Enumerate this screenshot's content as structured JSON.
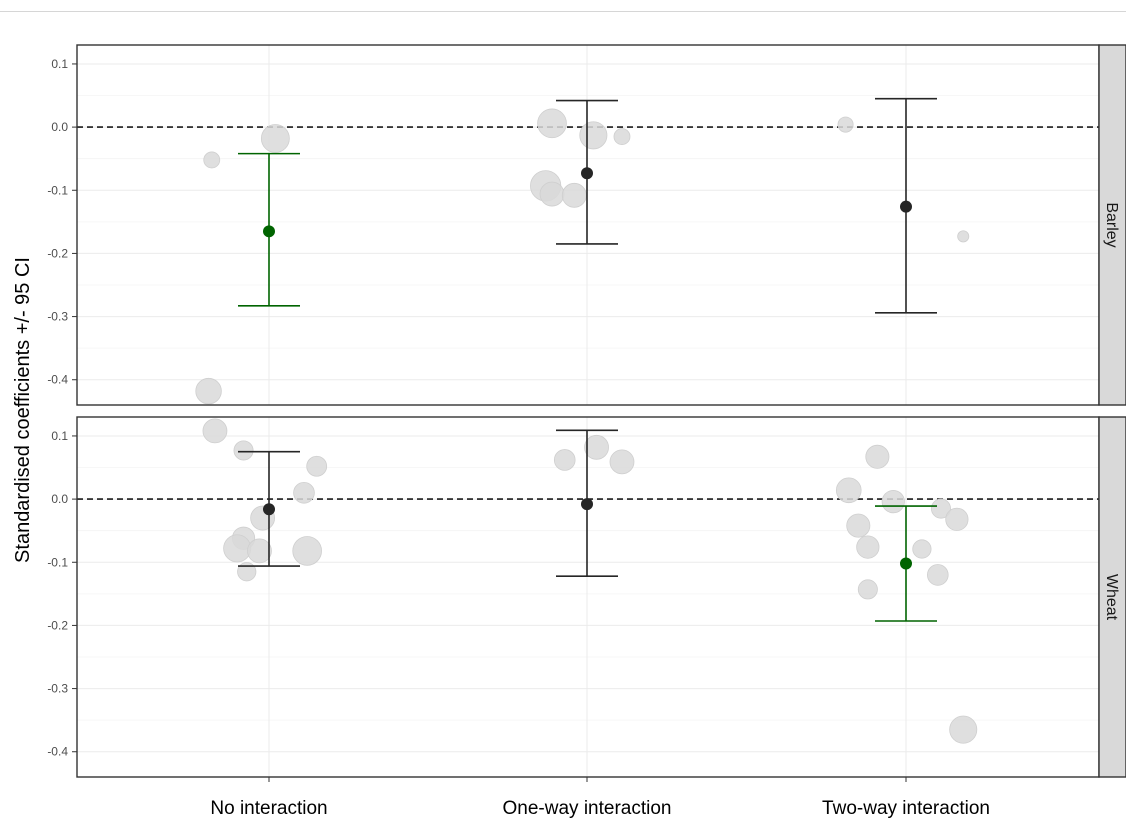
{
  "chart_data": {
    "type": "scatter",
    "title": "",
    "xlabel": "",
    "ylabel": "Standardised coefficients +/- 95 CI",
    "categories": [
      "No interaction",
      "One-way interaction",
      "Two-way interaction"
    ],
    "ylim": [
      -0.44,
      0.13
    ],
    "yticks": [
      -0.4,
      -0.3,
      -0.2,
      -0.1,
      0.0,
      0.1
    ],
    "ytick_labels": [
      "-0.4",
      "-0.3",
      "-0.2",
      "-0.1",
      "0.0",
      "0.1"
    ],
    "reference_line": 0.0,
    "grid": true,
    "colors": {
      "significant": "#006400",
      "nonsignificant": "#262626",
      "study_points": "#d9d9d9",
      "strip_fill": "#d9d9d9"
    },
    "panels": [
      {
        "name": "Barley",
        "estimates": [
          {
            "category": "No interaction",
            "estimate": -0.165,
            "lower": -0.283,
            "upper": -0.042,
            "significant": true
          },
          {
            "category": "One-way interaction",
            "estimate": -0.073,
            "lower": -0.185,
            "upper": 0.042,
            "significant": false
          },
          {
            "category": "Two-way interaction",
            "estimate": -0.126,
            "lower": -0.294,
            "upper": 0.045,
            "significant": false
          }
        ],
        "study_points": [
          {
            "category": "No interaction",
            "offset": -0.18,
            "y": -0.052,
            "weight": 1.0
          },
          {
            "category": "No interaction",
            "offset": 0.02,
            "y": -0.018,
            "weight": 2.5
          },
          {
            "category": "No interaction",
            "offset": -0.19,
            "y": -0.418,
            "weight": 2.2
          },
          {
            "category": "One-way interaction",
            "offset": -0.11,
            "y": 0.006,
            "weight": 2.6
          },
          {
            "category": "One-way interaction",
            "offset": 0.02,
            "y": -0.013,
            "weight": 2.4
          },
          {
            "category": "One-way interaction",
            "offset": 0.11,
            "y": -0.015,
            "weight": 1.0
          },
          {
            "category": "One-way interaction",
            "offset": -0.13,
            "y": -0.093,
            "weight": 2.8
          },
          {
            "category": "One-way interaction",
            "offset": -0.11,
            "y": -0.106,
            "weight": 2.0
          },
          {
            "category": "One-way interaction",
            "offset": -0.04,
            "y": -0.108,
            "weight": 2.0
          },
          {
            "category": "Two-way interaction",
            "offset": -0.19,
            "y": 0.004,
            "weight": 0.9
          },
          {
            "category": "Two-way interaction",
            "offset": 0.18,
            "y": -0.173,
            "weight": 0.4
          }
        ]
      },
      {
        "name": "Wheat",
        "estimates": [
          {
            "category": "No interaction",
            "estimate": -0.016,
            "lower": -0.106,
            "upper": 0.075,
            "significant": false
          },
          {
            "category": "One-way interaction",
            "estimate": -0.008,
            "lower": -0.122,
            "upper": 0.109,
            "significant": false
          },
          {
            "category": "Two-way interaction",
            "estimate": -0.102,
            "lower": -0.193,
            "upper": -0.011,
            "significant": true
          }
        ],
        "study_points": [
          {
            "category": "No interaction",
            "offset": -0.17,
            "y": 0.108,
            "weight": 2.0
          },
          {
            "category": "No interaction",
            "offset": -0.08,
            "y": 0.077,
            "weight": 1.4
          },
          {
            "category": "No interaction",
            "offset": 0.15,
            "y": 0.052,
            "weight": 1.5
          },
          {
            "category": "No interaction",
            "offset": 0.11,
            "y": 0.01,
            "weight": 1.6
          },
          {
            "category": "No interaction",
            "offset": -0.02,
            "y": -0.03,
            "weight": 2.0
          },
          {
            "category": "No interaction",
            "offset": -0.08,
            "y": -0.062,
            "weight": 1.8
          },
          {
            "category": "No interaction",
            "offset": -0.1,
            "y": -0.078,
            "weight": 2.4
          },
          {
            "category": "No interaction",
            "offset": -0.03,
            "y": -0.082,
            "weight": 2.0
          },
          {
            "category": "No interaction",
            "offset": 0.12,
            "y": -0.082,
            "weight": 2.6
          },
          {
            "category": "No interaction",
            "offset": -0.07,
            "y": -0.115,
            "weight": 1.3
          },
          {
            "category": "One-way interaction",
            "offset": -0.07,
            "y": 0.062,
            "weight": 1.6
          },
          {
            "category": "One-way interaction",
            "offset": 0.03,
            "y": 0.082,
            "weight": 2.0
          },
          {
            "category": "One-way interaction",
            "offset": 0.11,
            "y": 0.059,
            "weight": 2.0
          },
          {
            "category": "Two-way interaction",
            "offset": -0.09,
            "y": 0.067,
            "weight": 1.9
          },
          {
            "category": "Two-way interaction",
            "offset": -0.18,
            "y": 0.014,
            "weight": 2.1
          },
          {
            "category": "Two-way interaction",
            "offset": -0.04,
            "y": -0.004,
            "weight": 1.8
          },
          {
            "category": "Two-way interaction",
            "offset": 0.11,
            "y": -0.015,
            "weight": 1.4
          },
          {
            "category": "Two-way interaction",
            "offset": 0.16,
            "y": -0.032,
            "weight": 1.8
          },
          {
            "category": "Two-way interaction",
            "offset": -0.15,
            "y": -0.042,
            "weight": 1.9
          },
          {
            "category": "Two-way interaction",
            "offset": -0.12,
            "y": -0.076,
            "weight": 1.8
          },
          {
            "category": "Two-way interaction",
            "offset": 0.05,
            "y": -0.079,
            "weight": 1.3
          },
          {
            "category": "Two-way interaction",
            "offset": 0.1,
            "y": -0.12,
            "weight": 1.6
          },
          {
            "category": "Two-way interaction",
            "offset": -0.12,
            "y": -0.143,
            "weight": 1.4
          },
          {
            "category": "Two-way interaction",
            "offset": 0.18,
            "y": -0.365,
            "weight": 2.4
          }
        ]
      }
    ]
  }
}
